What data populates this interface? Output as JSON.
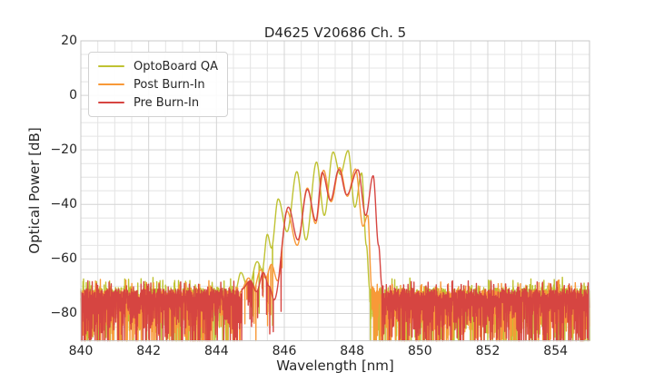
{
  "figure": {
    "background": "#ffffff",
    "text_color": "#262626"
  },
  "chart_data": {
    "type": "line",
    "title": "D4625 V20686 Ch. 5",
    "xlabel": "Wavelength [nm]",
    "ylabel": "Optical Power [dB]",
    "xlim": [
      840,
      855
    ],
    "ylim": [
      -90,
      20
    ],
    "xticks": [
      840,
      842,
      844,
      846,
      848,
      850,
      852,
      854
    ],
    "yticks": [
      20,
      0,
      -20,
      -40,
      -60,
      -80
    ],
    "minor_x_step": 0.5,
    "minor_y_step": 5,
    "grid": "major+minor",
    "grid_color": "#d4d4d4",
    "minor_grid_color": "#e4e4e4",
    "spine_color": "#c9c9c9",
    "legend_position": "upper left",
    "description": "Optical power spectra of a VCSEL channel: noise floor near -71 to -90 dB across 840-855 nm with a multimode emission band between ~844.6 and ~848.9 nm peaking near -20 dB (OptoBoard QA) and -27 dB (Post/Pre Burn-In).",
    "series": [
      {
        "name": "OptoBoard QA",
        "color": "#bfc232",
        "noise_floor_top_db": -70.5,
        "noise_floor_bottom_db": -90,
        "signal_range_nm": [
          844.55,
          848.52
        ],
        "profile_points": [
          [
            844.55,
            -72
          ],
          [
            844.72,
            -65
          ],
          [
            844.94,
            -71
          ],
          [
            845.2,
            -61
          ],
          [
            845.35,
            -64
          ],
          [
            845.5,
            -51
          ],
          [
            845.62,
            -56
          ],
          [
            845.82,
            -38
          ],
          [
            846.08,
            -50
          ],
          [
            846.37,
            -28
          ],
          [
            846.64,
            -53
          ],
          [
            846.95,
            -24.5
          ],
          [
            847.18,
            -44
          ],
          [
            847.44,
            -20.8
          ],
          [
            847.65,
            -29
          ],
          [
            847.88,
            -20.3
          ],
          [
            848.08,
            -41
          ],
          [
            848.28,
            -28.5
          ],
          [
            848.42,
            -55
          ],
          [
            848.52,
            -71
          ]
        ]
      },
      {
        "name": "Post Burn-In",
        "color": "#f89938",
        "noise_floor_top_db": -71.5,
        "noise_floor_bottom_db": -90,
        "signal_range_nm": [
          844.7,
          848.58
        ],
        "profile_points": [
          [
            844.7,
            -72
          ],
          [
            844.95,
            -67
          ],
          [
            845.1,
            -71
          ],
          [
            845.3,
            -64
          ],
          [
            845.45,
            -67
          ],
          [
            845.62,
            -62
          ],
          [
            845.8,
            -68
          ],
          [
            846.08,
            -42.5
          ],
          [
            846.38,
            -55
          ],
          [
            846.68,
            -34
          ],
          [
            846.92,
            -47
          ],
          [
            847.16,
            -27.5
          ],
          [
            847.38,
            -39
          ],
          [
            847.63,
            -26.5
          ],
          [
            847.86,
            -37
          ],
          [
            848.1,
            -27
          ],
          [
            848.32,
            -48
          ],
          [
            848.46,
            -44
          ],
          [
            848.58,
            -71
          ]
        ]
      },
      {
        "name": "Pre Burn-In",
        "color": "#d64541",
        "noise_floor_top_db": -71,
        "noise_floor_bottom_db": -90,
        "signal_range_nm": [
          844.75,
          848.88
        ],
        "profile_points": [
          [
            844.75,
            -71
          ],
          [
            845.0,
            -68
          ],
          [
            845.18,
            -72
          ],
          [
            845.38,
            -65
          ],
          [
            845.55,
            -70
          ],
          [
            845.7,
            -75
          ],
          [
            846.12,
            -41
          ],
          [
            846.4,
            -53
          ],
          [
            846.68,
            -34.5
          ],
          [
            846.93,
            -46
          ],
          [
            847.12,
            -28.3
          ],
          [
            847.36,
            -38.5
          ],
          [
            847.61,
            -27.2
          ],
          [
            847.84,
            -36.5
          ],
          [
            848.17,
            -27.3
          ],
          [
            848.4,
            -44
          ],
          [
            848.62,
            -29.5
          ],
          [
            848.78,
            -55
          ],
          [
            848.88,
            -70
          ]
        ]
      }
    ]
  }
}
